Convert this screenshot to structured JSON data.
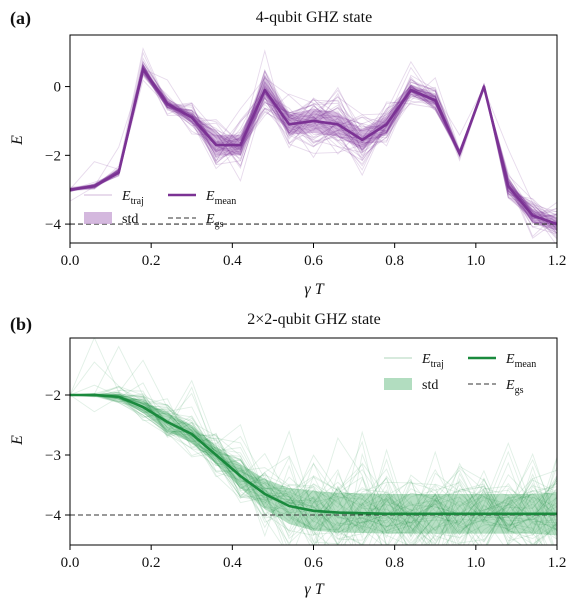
{
  "chart_data": [
    {
      "type": "line",
      "panel_tag": "(a)",
      "title": "4-qubit GHZ state",
      "xlabel": "γ T",
      "ylabel": "E",
      "xlim": [
        0.0,
        1.2
      ],
      "ylim": [
        -4.55,
        1.5
      ],
      "xticks": [
        "0.0",
        "0.2",
        "0.4",
        "0.6",
        "0.8",
        "1.0",
        "1.2"
      ],
      "yticks": [
        "−4",
        "−2",
        "0"
      ],
      "color": "#7b3294",
      "band_color": "#c9a6d6",
      "legend": {
        "placement": "lower-left",
        "traj": "E",
        "traj_sub": "traj",
        "mean": "E",
        "mean_sub": "mean",
        "std": "std",
        "gs": "E",
        "gs_sub": "gs"
      },
      "ground_state": -4.0,
      "x": [
        0.0,
        0.06,
        0.12,
        0.18,
        0.24,
        0.3,
        0.36,
        0.42,
        0.48,
        0.54,
        0.6,
        0.66,
        0.72,
        0.78,
        0.84,
        0.9,
        0.96,
        1.02,
        1.08,
        1.14,
        1.2
      ],
      "mean": [
        -3.0,
        -2.9,
        -2.5,
        0.5,
        -0.5,
        -0.9,
        -1.7,
        -1.7,
        -0.1,
        -1.1,
        -1.0,
        -1.1,
        -1.55,
        -1.1,
        -0.1,
        -0.4,
        -1.95,
        0.0,
        -2.9,
        -3.75,
        -4.0
      ],
      "std": [
        0.02,
        0.03,
        0.05,
        0.1,
        0.1,
        0.15,
        0.3,
        0.3,
        0.25,
        0.3,
        0.35,
        0.35,
        0.3,
        0.25,
        0.15,
        0.15,
        0.05,
        0.03,
        0.15,
        0.2,
        0.2
      ]
    },
    {
      "type": "line",
      "panel_tag": "(b)",
      "title": "2×2-qubit GHZ state",
      "xlabel": "γ T",
      "ylabel": "E",
      "xlim": [
        0.0,
        1.2
      ],
      "ylim": [
        -4.5,
        -1.05
      ],
      "xticks": [
        "0.0",
        "0.2",
        "0.4",
        "0.6",
        "0.8",
        "1.0",
        "1.2"
      ],
      "yticks": [
        "−4",
        "−3",
        "−2"
      ],
      "color": "#1a8a3d",
      "band_color": "#9fd4b0",
      "legend": {
        "placement": "upper-right",
        "traj": "E",
        "traj_sub": "traj",
        "mean": "E",
        "mean_sub": "mean",
        "std": "std",
        "gs": "E",
        "gs_sub": "gs"
      },
      "ground_state": -4.0,
      "x": [
        0.0,
        0.06,
        0.12,
        0.18,
        0.24,
        0.3,
        0.36,
        0.42,
        0.48,
        0.54,
        0.6,
        0.66,
        0.72,
        0.78,
        0.84,
        0.9,
        0.96,
        1.02,
        1.08,
        1.14,
        1.2
      ],
      "mean": [
        -2.0,
        -2.0,
        -2.03,
        -2.2,
        -2.45,
        -2.65,
        -3.0,
        -3.35,
        -3.65,
        -3.85,
        -3.93,
        -3.96,
        -3.97,
        -3.98,
        -3.98,
        -3.98,
        -3.98,
        -3.98,
        -3.98,
        -3.98,
        -3.98
      ],
      "std": [
        0.0,
        0.01,
        0.05,
        0.1,
        0.15,
        0.15,
        0.15,
        0.2,
        0.25,
        0.3,
        0.33,
        0.33,
        0.33,
        0.33,
        0.33,
        0.33,
        0.33,
        0.33,
        0.33,
        0.33,
        0.36
      ]
    }
  ]
}
